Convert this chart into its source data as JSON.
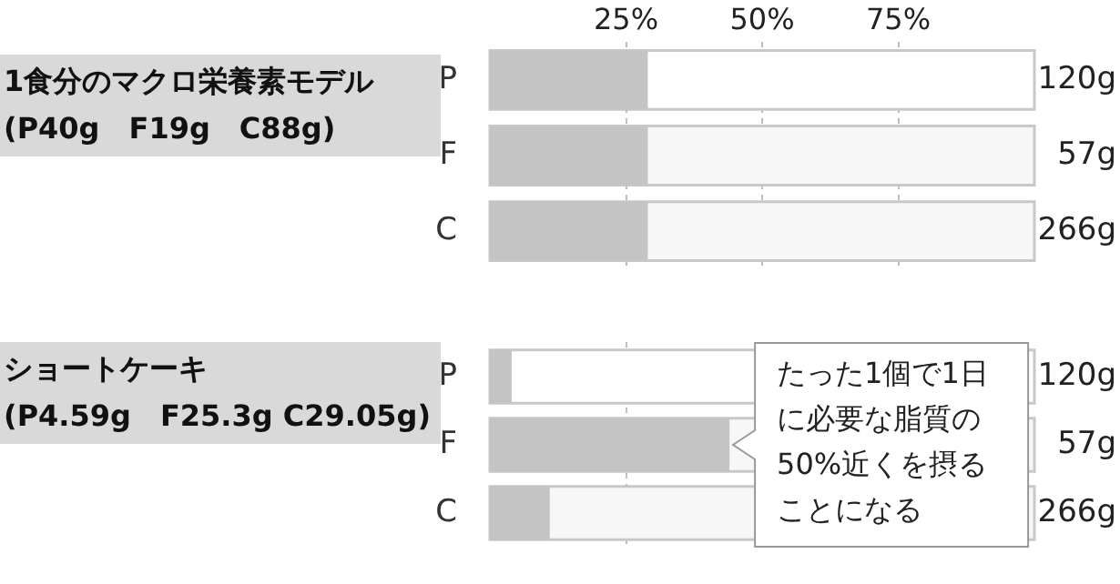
{
  "chart_data": [
    {
      "type": "bar",
      "orientation": "horizontal",
      "title": "1食分のマクロ栄養素モデル\n(P40g　F19g　C88g)",
      "categories": [
        "P",
        "F",
        "C"
      ],
      "values": [
        29,
        29,
        29
      ],
      "colors": [
        "#c4c4c4",
        "#c4c4c4",
        "#c4c4c4"
      ],
      "xlim": [
        0,
        100
      ],
      "xticks": [
        {
          "value": 25,
          "label": "25%"
        },
        {
          "value": 50,
          "label": "50%"
        },
        {
          "value": 75,
          "label": "75%"
        }
      ],
      "grid": "x",
      "line_style": "dashed",
      "annotations": [
        "120g",
        "57g",
        "266g"
      ]
    },
    {
      "type": "bar",
      "orientation": "horizontal",
      "title": "ショートケーキ\n(P4.59g　F25.3g C29.05g)",
      "categories": [
        "P",
        "F",
        "C"
      ],
      "values": [
        4,
        44,
        11
      ],
      "colors": [
        "#c4c4c4",
        "#c4c4c4",
        "#c4c4c4"
      ],
      "xlim": [
        0,
        100
      ],
      "xticks": [
        25,
        50,
        75
      ],
      "grid": "x",
      "line_style": "dashed",
      "tick_labels": "y",
      "annotations": [
        "120g",
        "57g",
        "266g",
        "たった1個で1日に必要な脂質の50%近くを摂ることになる"
      ]
    }
  ]
}
